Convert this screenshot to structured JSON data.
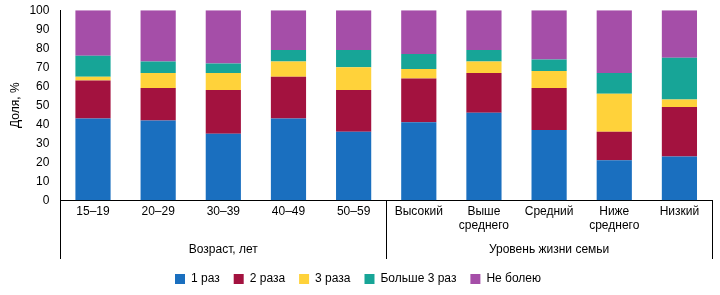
{
  "chart_data": {
    "type": "bar",
    "stacked": true,
    "y_label": "Доля, %",
    "categories": [
      "15–19",
      "20–29",
      "30–39",
      "40–49",
      "50–59",
      "Высокий",
      "Выше среднего",
      "Средний",
      "Ниже среднего",
      "Низкий"
    ],
    "category_groups": [
      "Возраст, лет",
      "Возраст, лет",
      "Возраст, лет",
      "Возраст, лет",
      "Возраст, лет",
      "Уровень жизни семьи",
      "Уровень жизни семьи",
      "Уровень жизни семьи",
      "Уровень жизни семьи",
      "Уровень жизни семьи"
    ],
    "series": [
      {
        "name": "1 раз",
        "color": "#1a6fbf",
        "values": [
          43,
          42,
          35,
          43,
          36,
          41,
          46,
          37,
          21,
          23
        ]
      },
      {
        "name": "2 раза",
        "color": "#a3123f",
        "values": [
          20,
          17,
          23,
          22,
          22,
          23,
          21,
          22,
          15,
          26
        ]
      },
      {
        "name": "3 раза",
        "color": "#ffd23a",
        "values": [
          2,
          8,
          9,
          8,
          12,
          5,
          6,
          9,
          20,
          4
        ]
      },
      {
        "name": "Больше 3 раз",
        "color": "#17a597",
        "values": [
          11,
          6,
          5,
          6,
          9,
          8,
          6,
          6,
          11,
          22
        ]
      },
      {
        "name": "Не болею",
        "color": "#a54ea8",
        "values": [
          24,
          27,
          28,
          21,
          21,
          23,
          21,
          26,
          33,
          25
        ]
      }
    ],
    "ylim": [
      0,
      100
    ],
    "yticks": [
      0,
      10,
      20,
      30,
      40,
      50,
      60,
      70,
      80,
      90,
      100
    ],
    "grid": false,
    "legend": "bottom"
  }
}
